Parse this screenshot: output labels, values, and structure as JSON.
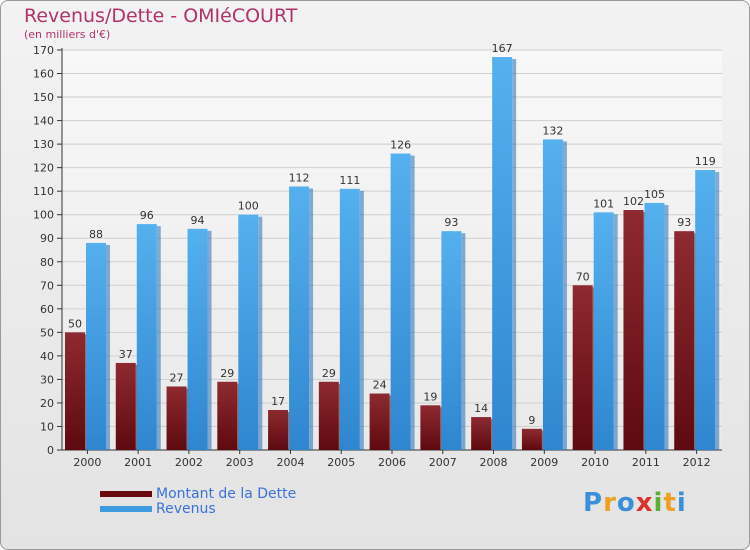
{
  "chart_data": {
    "type": "bar",
    "title": "Revenus/Dette - OMIéCOURT",
    "subtitle": "(en milliers d'€)",
    "categories": [
      "2000",
      "2001",
      "2002",
      "2003",
      "2004",
      "2005",
      "2006",
      "2007",
      "2008",
      "2009",
      "2010",
      "2011",
      "2012"
    ],
    "series": [
      {
        "name": "Montant de la Dette",
        "color": "#7a1a1f",
        "values": [
          50,
          37,
          27,
          29,
          17,
          29,
          24,
          19,
          14,
          9,
          70,
          102,
          93
        ]
      },
      {
        "name": "Revenus",
        "color": "#3f9be0",
        "values": [
          88,
          96,
          94,
          100,
          112,
          111,
          126,
          93,
          167,
          132,
          101,
          105,
          119
        ]
      }
    ],
    "ylim": [
      0,
      170
    ],
    "yticks": [
      0,
      10,
      20,
      30,
      40,
      50,
      60,
      70,
      80,
      90,
      100,
      110,
      120,
      130,
      140,
      150,
      160,
      170
    ],
    "grid": true,
    "legend": "bottom-left"
  },
  "logo": {
    "letters": [
      "P",
      "r",
      "o",
      "x",
      "i",
      "t",
      "i"
    ],
    "colors": [
      "#3a8fd8",
      "#f0a020",
      "#3a8fd8",
      "#e0302a",
      "#5ab030",
      "#f0a020",
      "#3a8fd8"
    ]
  }
}
